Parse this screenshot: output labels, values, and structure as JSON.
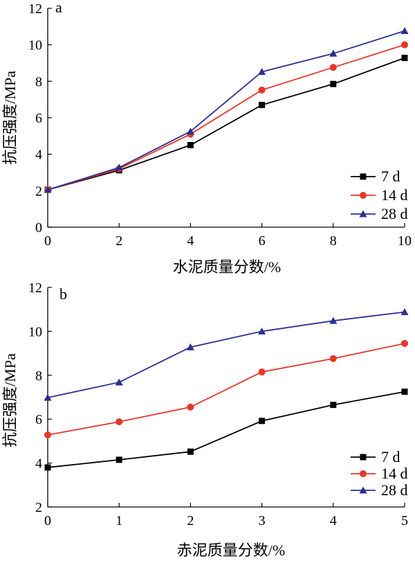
{
  "chart_data": [
    {
      "type": "line",
      "panel_label": "a",
      "xlabel": "水泥质量分数/%",
      "ylabel": "抗压强度/MPa",
      "xlim": [
        0,
        10
      ],
      "ylim": [
        0,
        12
      ],
      "x_ticks": [
        0,
        2,
        4,
        6,
        8,
        10
      ],
      "y_ticks": [
        0,
        2,
        4,
        6,
        8,
        10,
        12
      ],
      "grid": false,
      "legend_position": "bottom-right",
      "x": [
        0,
        2,
        4,
        6,
        8,
        10
      ],
      "series": [
        {
          "name": "7 d",
          "color": "#000000",
          "marker": "square",
          "values": [
            2.05,
            3.12,
            4.5,
            6.7,
            7.85,
            9.28
          ]
        },
        {
          "name": "14 d",
          "color": "#e8362b",
          "marker": "circle",
          "values": [
            2.05,
            3.2,
            5.1,
            7.52,
            8.76,
            10.0
          ]
        },
        {
          "name": "28 d",
          "color": "#2b2f8f",
          "marker": "triangle",
          "values": [
            2.05,
            3.27,
            5.25,
            8.52,
            9.52,
            10.76
          ]
        }
      ]
    },
    {
      "type": "line",
      "panel_label": "b",
      "xlabel": "赤泥质量分数/%",
      "ylabel": "抗压强度/MPa",
      "xlim": [
        0,
        5
      ],
      "ylim": [
        2,
        12
      ],
      "x_ticks": [
        0,
        1,
        2,
        3,
        4,
        5
      ],
      "y_ticks": [
        2,
        4,
        6,
        8,
        10,
        12
      ],
      "grid": false,
      "legend_position": "bottom-right",
      "x": [
        0,
        1,
        2,
        3,
        4,
        5
      ],
      "series": [
        {
          "name": "7 d",
          "color": "#000000",
          "marker": "square",
          "values": [
            3.8,
            4.15,
            4.52,
            5.92,
            6.65,
            7.25
          ]
        },
        {
          "name": "14 d",
          "color": "#e8362b",
          "marker": "circle",
          "values": [
            5.28,
            5.88,
            6.55,
            8.15,
            8.76,
            9.45
          ]
        },
        {
          "name": "28 d",
          "color": "#2b2f8f",
          "marker": "triangle",
          "values": [
            6.98,
            7.68,
            9.28,
            10.0,
            10.48,
            10.88
          ]
        }
      ]
    }
  ]
}
